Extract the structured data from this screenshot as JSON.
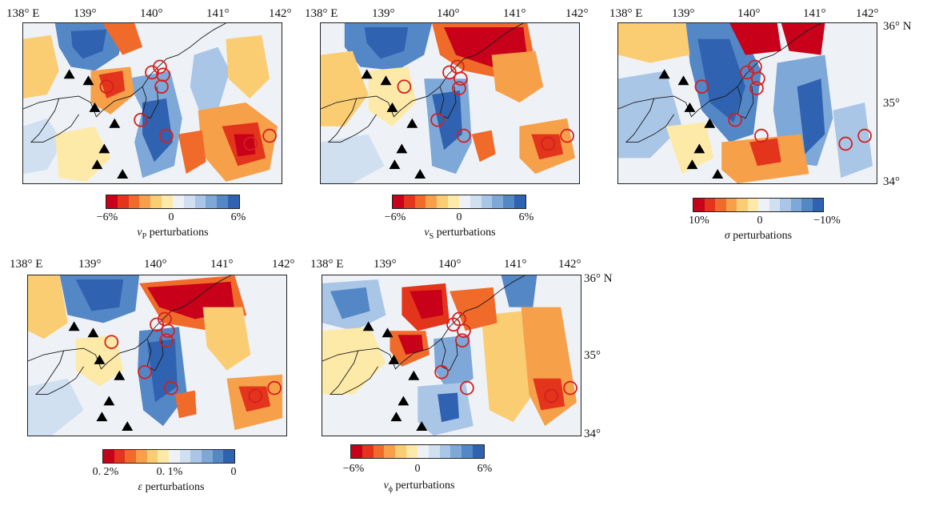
{
  "colors": {
    "scale_red_to_blue": [
      "#c8001a",
      "#e3341c",
      "#f06a2a",
      "#f7a04a",
      "#fbcd73",
      "#fdeaa8",
      "#eef2f7",
      "#d0e0f1",
      "#a9c6e6",
      "#7ea8d7",
      "#5487c6",
      "#2f62b1"
    ],
    "coast": "#1a1a1a",
    "station": "#000000",
    "event_circle": "#d61f1f"
  },
  "axes": {
    "lon_ticks": [
      "138° E",
      "139°",
      "140°",
      "141°",
      "142°"
    ],
    "lat_ticks": [
      "36° N",
      "35°",
      "34°"
    ]
  },
  "markers": {
    "station_icon": "triangle-icon",
    "event_icon": "circle-icon"
  },
  "panels": [
    {
      "id": "vp",
      "title_symbol": "v",
      "title_sub": "P",
      "title_text": " perturbations",
      "cb_labels": [
        "−6%",
        "0",
        "6%"
      ],
      "cb_reversed": false,
      "show_lat": false,
      "show_lon": true
    },
    {
      "id": "vs",
      "title_symbol": "v",
      "title_sub": "S",
      "title_text": " perturbations",
      "cb_labels": [
        "−6%",
        "0",
        "6%"
      ],
      "cb_reversed": false,
      "show_lat": false,
      "show_lon": true
    },
    {
      "id": "sigma",
      "title_symbol": "σ",
      "title_sub": "",
      "title_text": " perturbations",
      "cb_labels": [
        "10%",
        "0",
        "−10%"
      ],
      "cb_reversed": false,
      "show_lat": true,
      "show_lon": true
    },
    {
      "id": "epsilon",
      "title_symbol": "ε",
      "title_sub": "",
      "title_text": " perturbations",
      "cb_labels": [
        "0. 2%",
        "0. 1%",
        "0"
      ],
      "cb_reversed": false,
      "show_lat": false,
      "show_lon": true
    },
    {
      "id": "vphi",
      "title_symbol": "v",
      "title_sub": "ϕ",
      "title_text": " perturbations",
      "cb_labels": [
        "−6%",
        "0",
        "6%"
      ],
      "cb_reversed": false,
      "show_lat": true,
      "show_lon": true
    }
  ]
}
